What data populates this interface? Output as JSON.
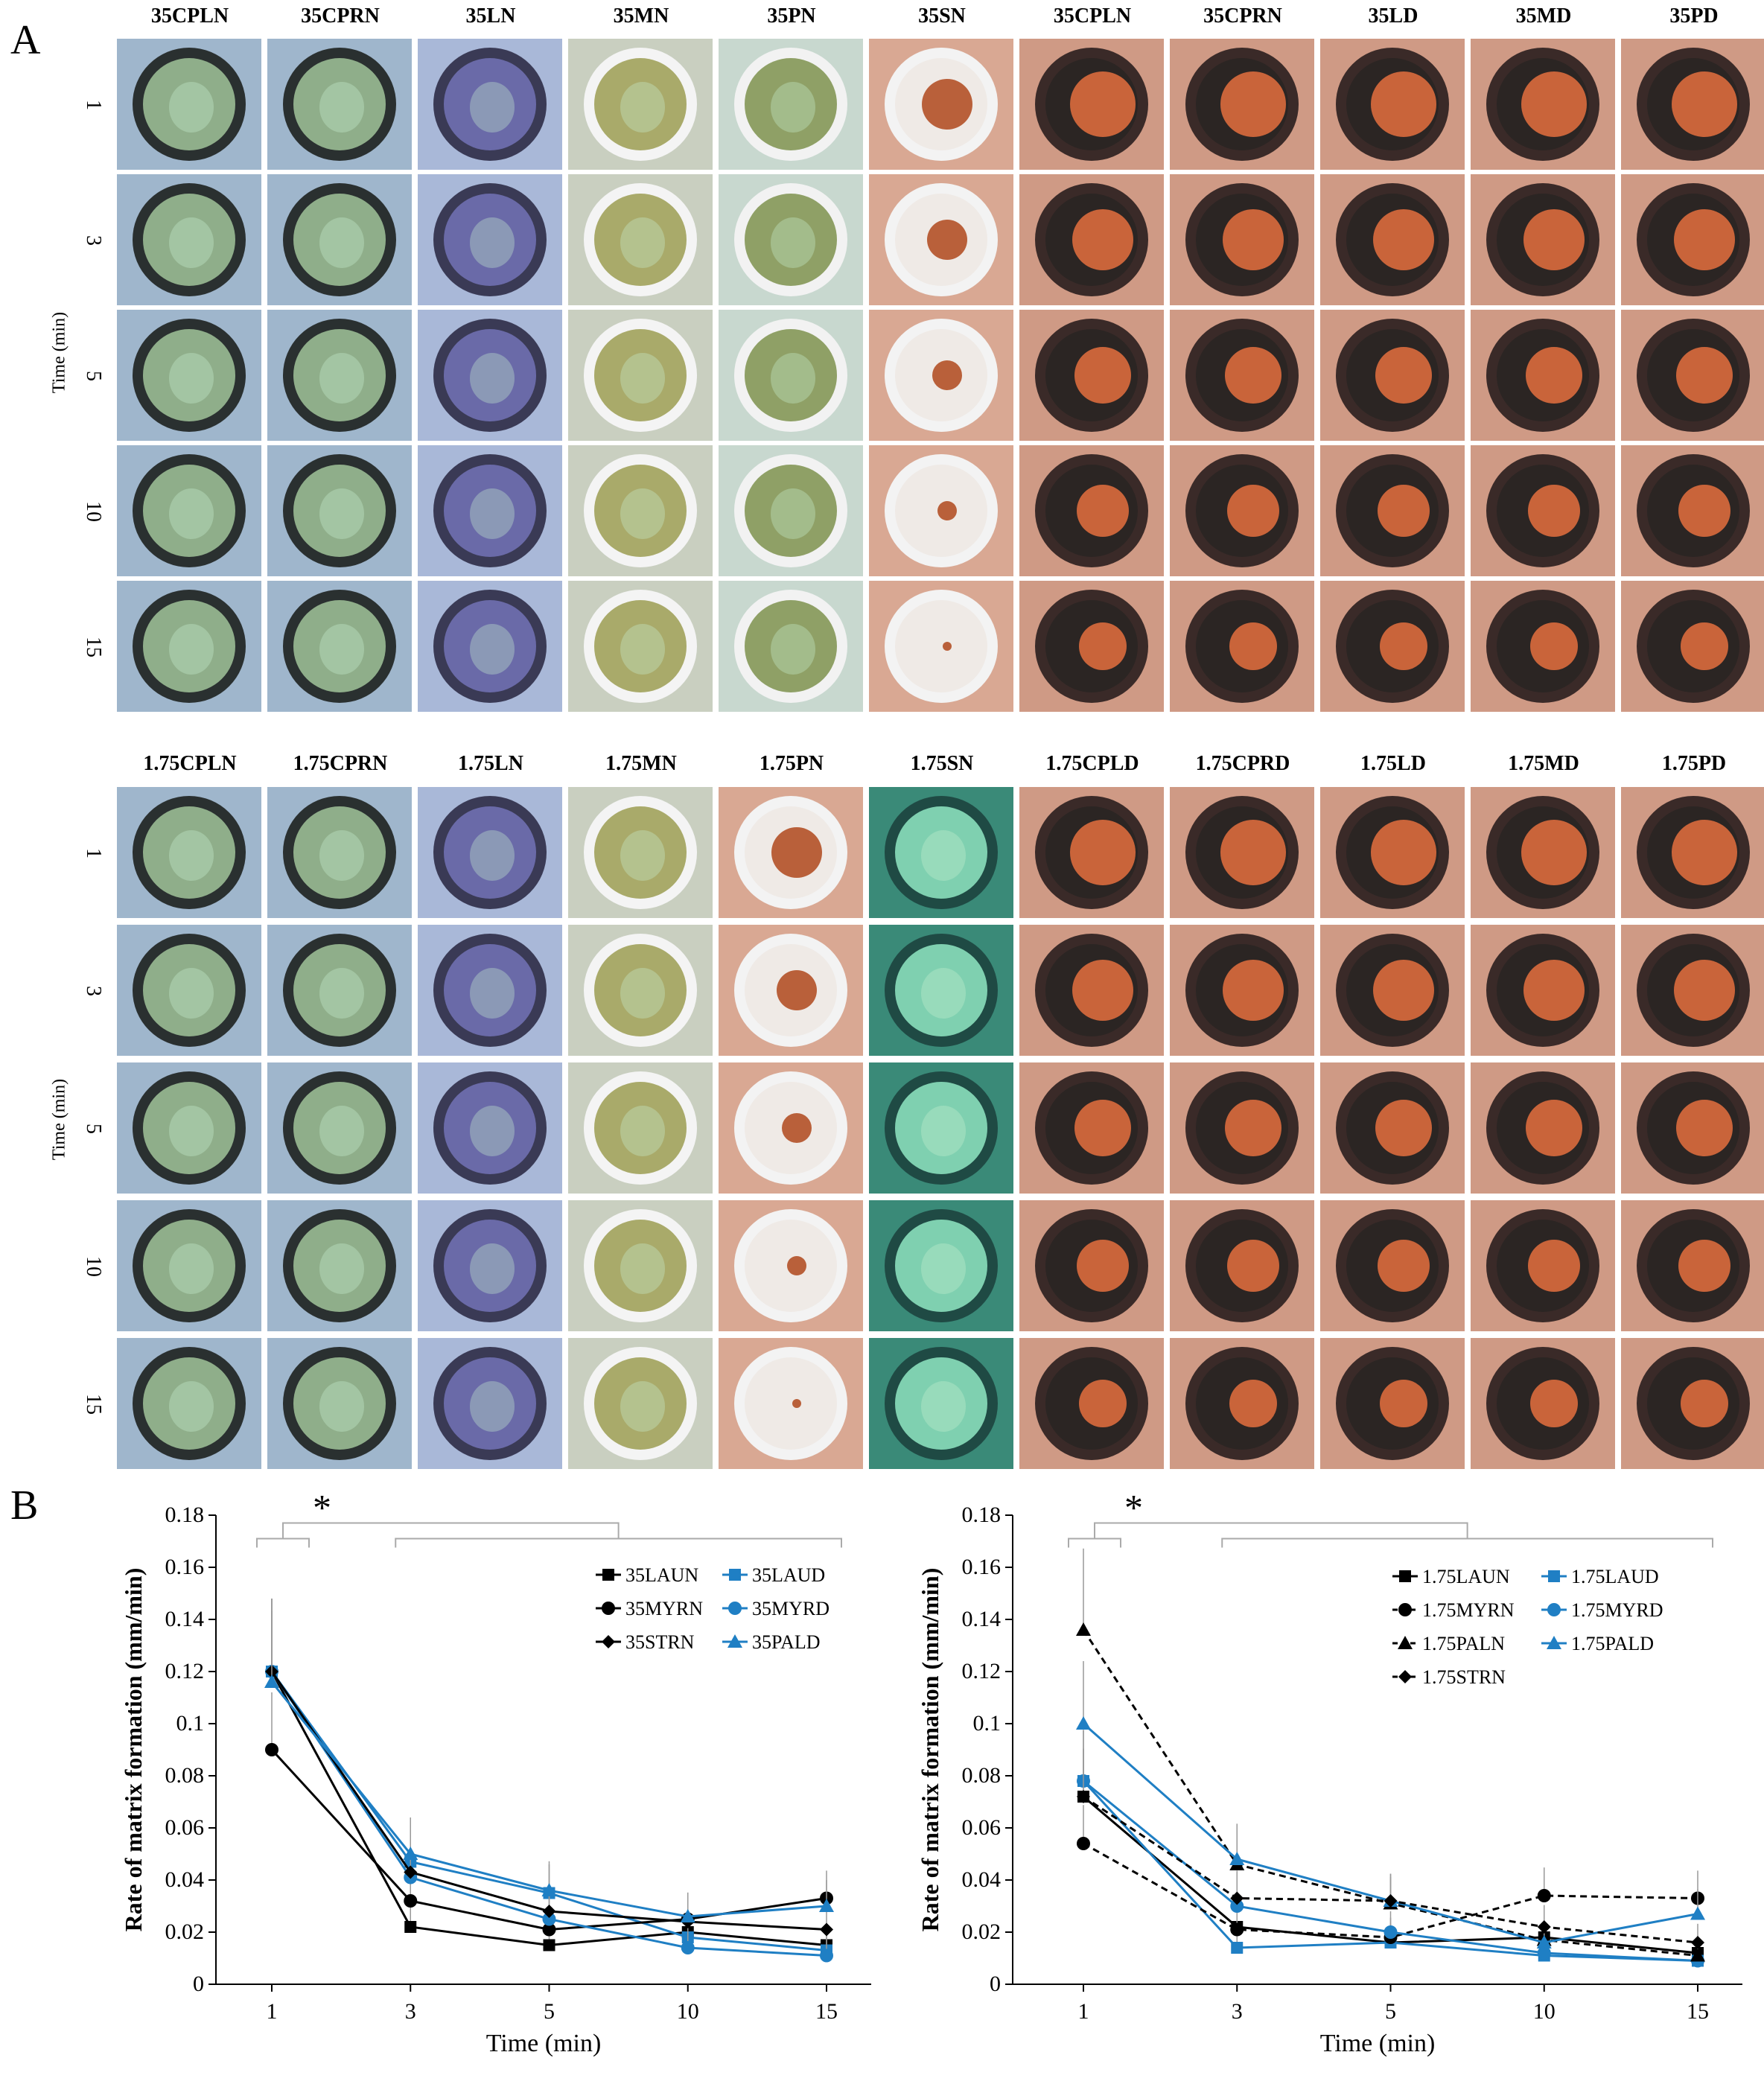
{
  "panel_a": {
    "letter": "A",
    "row_axis_title": "Time (min)",
    "rows": [
      "1",
      "3",
      "5",
      "10",
      "15"
    ],
    "top_headers": [
      "35CPLN",
      "35CPRN",
      "35LN",
      "35MN",
      "35PN",
      "35SN",
      "35CPLN",
      "35CPRN",
      "35LD",
      "35MD",
      "35PD"
    ],
    "bottom_headers": [
      "1.75CPLN",
      "1.75CPRN",
      "1.75LN",
      "1.75MN",
      "1.75PN",
      "1.75SN",
      "1.75CPLD",
      "1.75CPRD",
      "1.75LD",
      "1.75MD",
      "1.75PD"
    ],
    "tile_palettes": {
      "green": {
        "bg": "#9fb6cc",
        "rim": "#2a3030",
        "fill": "#8fae8a"
      },
      "purple": {
        "bg": "#a9b8d8",
        "rim": "#3a3a55",
        "fill": "#6a6aa8"
      },
      "olive": {
        "bg": "#c9cfc0",
        "rim": "#f4f4f4",
        "fill": "#a9aa6a"
      },
      "moss": {
        "bg": "#c8d8cf",
        "rim": "#f2f2f2",
        "fill": "#8fa066"
      },
      "orange": {
        "bg": "#cf9a85",
        "rim": "#3a2a28",
        "fill": "#c9643a"
      },
      "white": {
        "bg": "#d9a893",
        "rim": "#f3f3f3",
        "fill": "#d9d3cc"
      },
      "teal": {
        "bg": "#3a8a78",
        "rim": "#1f4a44",
        "fill": "#7fd0b0"
      }
    }
  },
  "panel_b": {
    "letter": "B",
    "significance_marker": "*",
    "chart_data": [
      {
        "type": "line",
        "x": [
          "1",
          "3",
          "5",
          "10",
          "15"
        ],
        "xlabel": "Time (min)",
        "ylabel": "Rate of matrix formation (mm/min)",
        "ylim": [
          0,
          0.18
        ],
        "yticks": [
          "0",
          "0.02",
          "0.04",
          "0.06",
          "0.08",
          "0.1",
          "0.12",
          "0.14",
          "0.16",
          "0.18"
        ],
        "legend_position": "top-right",
        "series": [
          {
            "name": "35LAUN",
            "color": "#000000",
            "marker": "square",
            "dashed": false,
            "values": [
              0.12,
              0.022,
              0.015,
              0.02,
              0.015
            ]
          },
          {
            "name": "35LAUD",
            "color": "#1f7fc4",
            "marker": "square",
            "dashed": false,
            "values": [
              0.12,
              0.047,
              0.035,
              0.018,
              0.013
            ]
          },
          {
            "name": "35MYRN",
            "color": "#000000",
            "marker": "circle",
            "dashed": false,
            "values": [
              0.09,
              0.032,
              0.021,
              0.025,
              0.033
            ]
          },
          {
            "name": "35MYRD",
            "color": "#1f7fc4",
            "marker": "circle",
            "dashed": false,
            "values": [
              0.12,
              0.041,
              0.025,
              0.014,
              0.011
            ]
          },
          {
            "name": "35STRN",
            "color": "#000000",
            "marker": "diamond",
            "dashed": false,
            "values": [
              0.12,
              0.043,
              0.028,
              0.024,
              0.021
            ]
          },
          {
            "name": "35PALD",
            "color": "#1f7fc4",
            "marker": "triangle",
            "dashed": false,
            "values": [
              0.116,
              0.05,
              0.036,
              0.026,
              0.03
            ]
          }
        ]
      },
      {
        "type": "line",
        "x": [
          "1",
          "3",
          "5",
          "10",
          "15"
        ],
        "xlabel": "Time (min)",
        "ylabel": "Rate of matrix formation (mm/min)",
        "ylim": [
          0,
          0.18
        ],
        "yticks": [
          "0",
          "0.02",
          "0.04",
          "0.06",
          "0.08",
          "0.1",
          "0.12",
          "0.14",
          "0.16",
          "0.18"
        ],
        "legend_position": "top-right",
        "series": [
          {
            "name": "1.75LAUN",
            "color": "#000000",
            "marker": "square",
            "dashed": false,
            "values": [
              0.072,
              0.022,
              0.016,
              0.018,
              0.012
            ]
          },
          {
            "name": "1.75LAUD",
            "color": "#1f7fc4",
            "marker": "square",
            "dashed": false,
            "values": [
              0.078,
              0.014,
              0.016,
              0.011,
              0.009
            ]
          },
          {
            "name": "1.75MYRN",
            "color": "#000000",
            "marker": "circle",
            "dashed": true,
            "values": [
              0.054,
              0.021,
              0.018,
              0.034,
              0.033
            ]
          },
          {
            "name": "1.75MYRD",
            "color": "#1f7fc4",
            "marker": "circle",
            "dashed": false,
            "values": [
              0.078,
              0.03,
              0.02,
              0.012,
              0.009
            ]
          },
          {
            "name": "1.75PALN",
            "color": "#000000",
            "marker": "triangle",
            "dashed": true,
            "values": [
              0.136,
              0.046,
              0.031,
              0.017,
              0.011
            ]
          },
          {
            "name": "1.75PALD",
            "color": "#1f7fc4",
            "marker": "triangle",
            "dashed": false,
            "values": [
              0.1,
              0.048,
              0.032,
              0.016,
              0.027
            ]
          },
          {
            "name": "1.75STRN",
            "color": "#000000",
            "marker": "diamond",
            "dashed": true,
            "values": [
              0.072,
              0.033,
              0.032,
              0.022,
              0.016
            ]
          }
        ]
      }
    ]
  }
}
